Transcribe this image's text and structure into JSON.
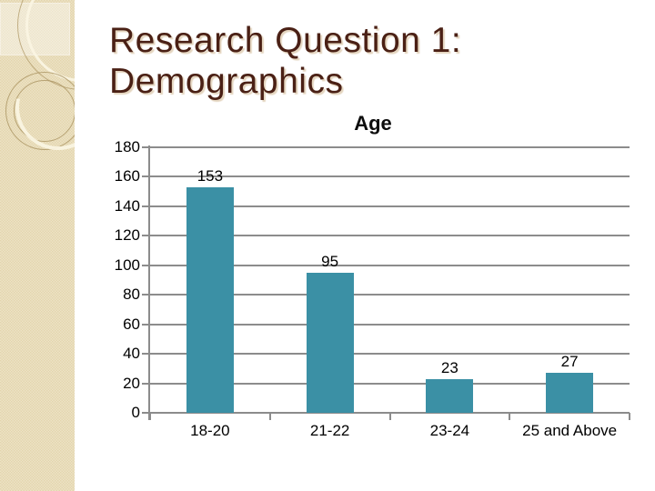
{
  "slide": {
    "title": {
      "line1": "Research Question 1:",
      "line2": "Demographics",
      "color": "#4A2015"
    },
    "background": "#FFFFFF",
    "sidebar": {
      "base_color": "#E8DBB7",
      "check_light": "#EDE3C6",
      "check_dark": "#E3D5AD",
      "ring_cream": "#FAF4E2",
      "ring_tan": "#AA9462"
    }
  },
  "chart_data": {
    "type": "bar",
    "title": "Age",
    "categories": [
      "18-20",
      "21-22",
      "23-24",
      "25 and Above"
    ],
    "values": [
      153,
      95,
      23,
      27
    ],
    "xlabel": "",
    "ylabel": "",
    "ylim": [
      0,
      180
    ],
    "yticks": [
      0,
      20,
      40,
      60,
      80,
      100,
      120,
      140,
      160,
      180
    ],
    "grid": true,
    "legend": "none",
    "bar_color": "#3B90A5",
    "gridline_color": "#8C8C8C",
    "axis_color": "#8C8C8C",
    "text_color": "#000000",
    "title_color": "#0D0D0D"
  }
}
